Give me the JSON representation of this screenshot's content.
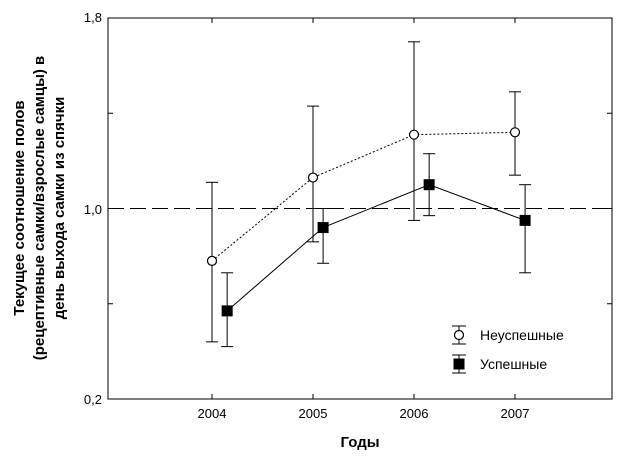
{
  "chart_data": {
    "type": "line",
    "title": "",
    "xlabel": "Годы",
    "ylabel_lines": [
      "Текущее соотношение полов",
      "(рецептивные самки/взрослые самцы) в",
      "день выхода самки из спячки"
    ],
    "categories": [
      "2004",
      "2005",
      "2006",
      "2007"
    ],
    "x_tick_labels": [
      "2004",
      "2005",
      "2006",
      "2007"
    ],
    "y_tick_labels": [
      "1,8",
      "1,0",
      "0,2"
    ],
    "ylim": [
      0.2,
      1.8
    ],
    "reference_line": 1.0,
    "grid": false,
    "legend_position": "bottom-right",
    "series": [
      {
        "name": "Неуспешные",
        "marker": "open-circle",
        "line_style": "dotted",
        "color": "#000000",
        "x": [
          2004,
          2005,
          2006,
          2007
        ],
        "values": [
          0.78,
          1.13,
          1.31,
          1.32
        ],
        "error_low": [
          0.44,
          0.86,
          0.95,
          1.14
        ],
        "error_high": [
          1.11,
          1.43,
          1.7,
          1.49
        ]
      },
      {
        "name": "Успешные",
        "marker": "filled-square",
        "line_style": "solid",
        "color": "#000000",
        "x": [
          2004.15,
          2005.1,
          2006.15,
          2007.1
        ],
        "values": [
          0.57,
          0.92,
          1.1,
          0.95
        ],
        "error_low": [
          0.42,
          0.77,
          0.97,
          0.73
        ],
        "error_high": [
          0.73,
          1.0,
          1.23,
          1.1
        ]
      }
    ]
  }
}
